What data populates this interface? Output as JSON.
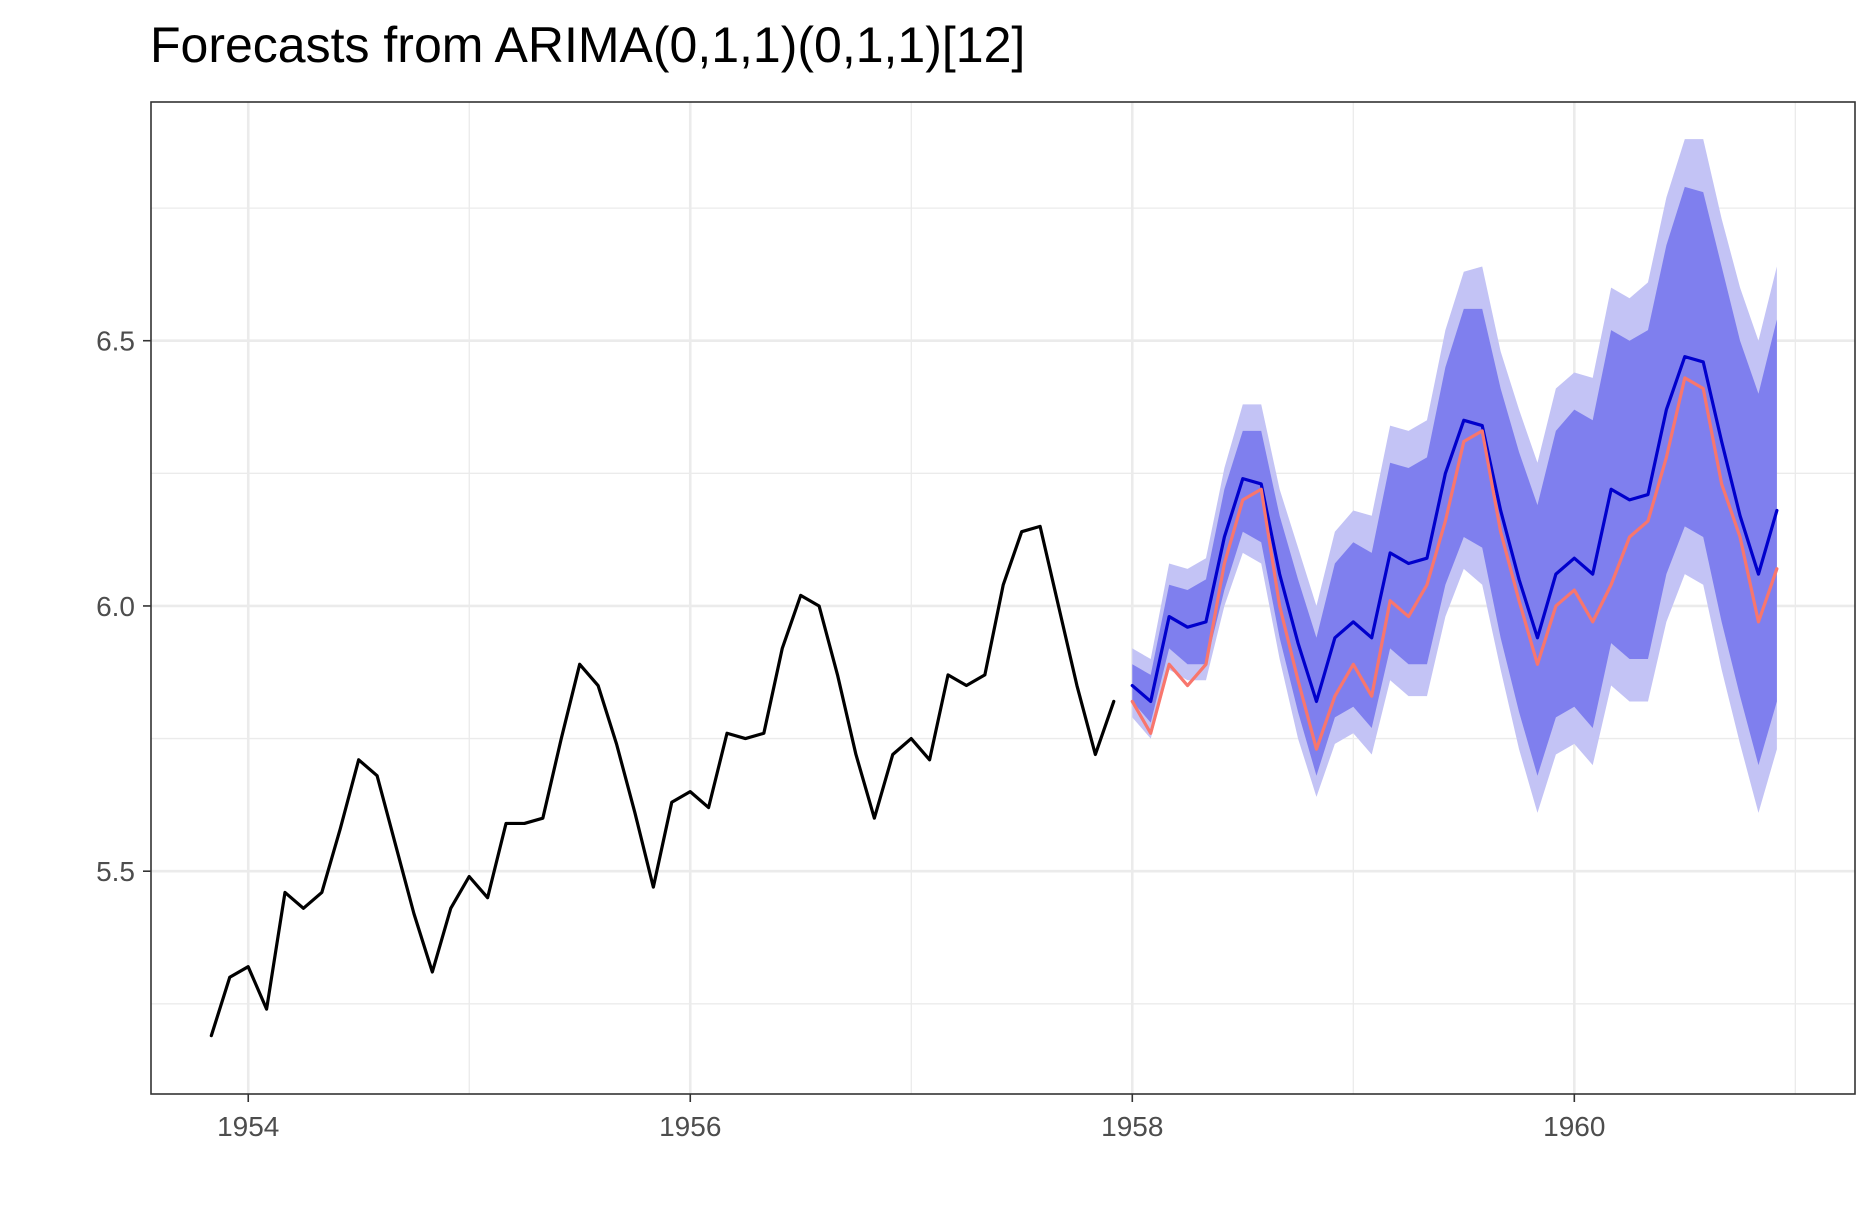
{
  "chart_data": {
    "type": "line",
    "title": "Forecasts from ARIMA(0,1,1)(0,1,1)[12]",
    "xlabel": "",
    "ylabel": "",
    "xlim": [
      1953.56,
      1961.27
    ],
    "ylim": [
      5.08,
      6.95
    ],
    "x_ticks": [
      1954,
      1956,
      1958,
      1960
    ],
    "x_tick_labels": [
      "1954",
      "1956",
      "1958",
      "1960"
    ],
    "y_ticks": [
      5.5,
      6.0,
      6.5
    ],
    "y_tick_labels": [
      "5.5",
      "6.0",
      "6.5"
    ],
    "y_minor_ticks": [
      5.25,
      5.75,
      6.25,
      6.75
    ],
    "x_minor_ticks": [
      1955,
      1957,
      1959,
      1961
    ],
    "grid": true,
    "legend": "none",
    "series": [
      {
        "role": "observed",
        "color": "#000000",
        "x_start": 1953.833,
        "x_step": 0.08333,
        "values": [
          5.19,
          5.3,
          5.32,
          5.24,
          5.46,
          5.43,
          5.46,
          5.58,
          5.71,
          5.68,
          5.55,
          5.42,
          5.31,
          5.43,
          5.49,
          5.45,
          5.59,
          5.59,
          5.6,
          5.75,
          5.89,
          5.85,
          5.74,
          5.61,
          5.47,
          5.63,
          5.65,
          5.62,
          5.76,
          5.75,
          5.76,
          5.92,
          6.02,
          6.0,
          5.87,
          5.72,
          5.6,
          5.72,
          5.75,
          5.71,
          5.87,
          5.85,
          5.87,
          6.04,
          6.14,
          6.15,
          6.0,
          5.85,
          5.72,
          5.82
        ]
      },
      {
        "role": "forecast",
        "color": "#0000cc",
        "x_start": 1958.0,
        "x_step": 0.08333,
        "values": [
          5.85,
          5.82,
          5.98,
          5.96,
          5.97,
          6.13,
          6.24,
          6.23,
          6.06,
          5.93,
          5.82,
          5.94,
          5.97,
          5.94,
          6.1,
          6.08,
          6.09,
          6.25,
          6.35,
          6.34,
          6.18,
          6.05,
          5.94,
          6.06,
          6.09,
          6.06,
          6.22,
          6.2,
          6.21,
          6.37,
          6.47,
          6.46,
          6.31,
          6.17,
          6.06,
          6.18
        ],
        "lo80": [
          5.82,
          5.78,
          5.92,
          5.89,
          5.89,
          6.03,
          6.14,
          6.12,
          5.94,
          5.8,
          5.68,
          5.79,
          5.81,
          5.77,
          5.92,
          5.89,
          5.89,
          6.04,
          6.13,
          6.11,
          5.94,
          5.8,
          5.68,
          5.79,
          5.81,
          5.77,
          5.93,
          5.9,
          5.9,
          6.06,
          6.15,
          6.13,
          5.97,
          5.83,
          5.7,
          5.82
        ],
        "hi80": [
          5.89,
          5.87,
          6.04,
          6.03,
          6.05,
          6.22,
          6.33,
          6.33,
          6.17,
          6.05,
          5.94,
          6.08,
          6.12,
          6.1,
          6.27,
          6.26,
          6.28,
          6.45,
          6.56,
          6.56,
          6.41,
          6.29,
          6.19,
          6.33,
          6.37,
          6.35,
          6.52,
          6.5,
          6.52,
          6.68,
          6.79,
          6.78,
          6.64,
          6.5,
          6.4,
          6.54
        ],
        "lo95": [
          5.79,
          5.75,
          5.88,
          5.86,
          5.86,
          6.0,
          6.1,
          6.08,
          5.9,
          5.75,
          5.64,
          5.74,
          5.76,
          5.72,
          5.86,
          5.83,
          5.83,
          5.98,
          6.07,
          6.04,
          5.88,
          5.73,
          5.61,
          5.72,
          5.74,
          5.7,
          5.85,
          5.82,
          5.82,
          5.97,
          6.06,
          6.04,
          5.88,
          5.74,
          5.61,
          5.73
        ],
        "hi95": [
          5.92,
          5.9,
          6.08,
          6.07,
          6.09,
          6.26,
          6.38,
          6.38,
          6.22,
          6.11,
          6.0,
          6.14,
          6.18,
          6.17,
          6.34,
          6.33,
          6.35,
          6.52,
          6.63,
          6.64,
          6.48,
          6.37,
          6.27,
          6.41,
          6.44,
          6.43,
          6.6,
          6.58,
          6.61,
          6.77,
          6.88,
          6.88,
          6.73,
          6.6,
          6.5,
          6.64
        ]
      },
      {
        "role": "actual",
        "color": "#f8766d",
        "x_start": 1958.0,
        "x_step": 0.08333,
        "values": [
          5.82,
          5.76,
          5.89,
          5.85,
          5.89,
          6.08,
          6.2,
          6.22,
          6.0,
          5.86,
          5.73,
          5.83,
          5.89,
          5.83,
          6.01,
          5.98,
          6.04,
          6.16,
          6.31,
          6.33,
          6.14,
          6.01,
          5.89,
          6.0,
          6.03,
          5.97,
          6.04,
          6.13,
          6.16,
          6.28,
          6.43,
          6.41,
          6.23,
          6.13,
          5.97,
          6.07
        ]
      }
    ],
    "interval_colors": {
      "band95": "#c3c3f5",
      "band80": "#7f7fee"
    }
  }
}
